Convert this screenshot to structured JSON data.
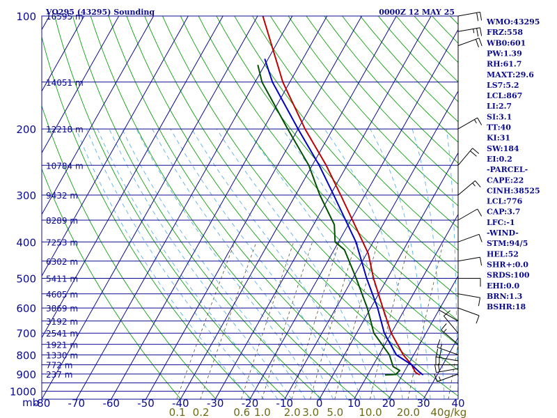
{
  "header": {
    "station_title": "VO295 (43295) Sounding",
    "valid_time": "0000Z 12 MAY 25"
  },
  "colors": {
    "background": "#ffffff",
    "isobar_isotherm": "#0b0b8f",
    "dry_adiabat": "#10a010",
    "moist_adiabat": "#59b0e8",
    "mixing_ratio": "#555533",
    "temperature": "#c00000",
    "virtual_temperature": "#0000c0",
    "dewpoint": "#005000",
    "wind_barb": "#000000",
    "label_text": "#0b0b8f",
    "mixing_label_text": "#6e6b16"
  },
  "indices": [
    "WMO:43295",
    "FRZ:558",
    "WB0:601",
    "PW:1.39",
    "RH:61.7",
    "MAXT:29.6",
    "LS7:5.2",
    "LCL:867",
    "LI:2.7",
    "SI:3.1",
    "TT:40",
    "KI:31",
    "SW:184",
    "EI:0.2",
    "-PARCEL-",
    "CAPE:22",
    "CINH:38525",
    "LCL:776",
    "CAP:3.7",
    "LFC:-1",
    "-WIND-",
    "STM:94/5",
    "HEL:52",
    "SHR+:0.0",
    "SRDS:100",
    "EHI:0.0",
    "BRN:1.3",
    "BSHR:18"
  ],
  "chart_data": {
    "type": "line",
    "title": "VO295 (43295) Sounding",
    "subtitle": "0000Z 12 MAY 25",
    "xlabel": "",
    "ylabel": "mb",
    "x_scale": "skewed temperature (deg C)",
    "y_scale": "log pressure (mb)",
    "xlim": [
      -80,
      40
    ],
    "ylim": [
      1000,
      100
    ],
    "grid": true,
    "pressure_ticks": [
      100,
      200,
      300,
      400,
      500,
      600,
      700,
      800,
      900,
      1000
    ],
    "temperature_ticks": [
      -80,
      -70,
      -60,
      -50,
      -40,
      -30,
      -20,
      -10,
      0,
      10,
      20,
      30,
      40
    ],
    "height_labels": [
      {
        "pressure": 100,
        "label": "16595 m"
      },
      {
        "pressure": 150,
        "label": "14051 m"
      },
      {
        "pressure": 200,
        "label": "12218 m"
      },
      {
        "pressure": 250,
        "label": "10784 m"
      },
      {
        "pressure": 300,
        "label": "9432 m"
      },
      {
        "pressure": 350,
        "label": "8289 m"
      },
      {
        "pressure": 400,
        "label": "7253 m"
      },
      {
        "pressure": 450,
        "label": "6302 m"
      },
      {
        "pressure": 500,
        "label": "5411 m"
      },
      {
        "pressure": 550,
        "label": "4605 m"
      },
      {
        "pressure": 600,
        "label": "3869 m"
      },
      {
        "pressure": 650,
        "label": "3192 m"
      },
      {
        "pressure": 700,
        "label": "2541 m"
      },
      {
        "pressure": 750,
        "label": "1921 m"
      },
      {
        "pressure": 800,
        "label": "1330 m"
      },
      {
        "pressure": 850,
        "label": "772 m"
      },
      {
        "pressure": 900,
        "label": "237 m"
      }
    ],
    "mixing_ratio_labels": [
      "0.1",
      "0.2",
      "0.6",
      "1.0",
      "2.0",
      "3.0",
      "5.0",
      "10.0",
      "20.0",
      "40g/kg"
    ],
    "mixing_ratio_values": [
      0.1,
      0.2,
      0.6,
      1.0,
      2.0,
      3.0,
      5.0,
      10.0,
      20.0,
      40.0
    ],
    "series": [
      {
        "key": "temperature",
        "points": [
          {
            "p": 905,
            "t": 25.0
          },
          {
            "p": 890,
            "t": 23.3
          },
          {
            "p": 850,
            "t": 21.0
          },
          {
            "p": 800,
            "t": 17.0
          },
          {
            "p": 700,
            "t": 10.0
          },
          {
            "p": 600,
            "t": 3.5
          },
          {
            "p": 500,
            "t": -4.0
          },
          {
            "p": 430,
            "t": -9.5
          },
          {
            "p": 400,
            "t": -13.0
          },
          {
            "p": 300,
            "t": -27.0
          },
          {
            "p": 250,
            "t": -36.0
          },
          {
            "p": 200,
            "t": -48.0
          },
          {
            "p": 150,
            "t": -62.0
          },
          {
            "p": 100,
            "t": -78.5
          }
        ]
      },
      {
        "key": "virtual_temperature",
        "points": [
          {
            "p": 905,
            "t": 26.0
          },
          {
            "p": 890,
            "t": 24.5
          },
          {
            "p": 850,
            "t": 21.0
          },
          {
            "p": 800,
            "t": 15.0
          },
          {
            "p": 700,
            "t": 8.0
          },
          {
            "p": 600,
            "t": 2.0
          },
          {
            "p": 500,
            "t": -6.0
          },
          {
            "p": 400,
            "t": -15.0
          },
          {
            "p": 300,
            "t": -29.0
          },
          {
            "p": 250,
            "t": -38.0
          },
          {
            "p": 200,
            "t": -50.0
          },
          {
            "p": 150,
            "t": -65.0
          },
          {
            "p": 130,
            "t": -71.0
          }
        ]
      },
      {
        "key": "dewpoint",
        "points": [
          {
            "p": 905,
            "t": 15.0
          },
          {
            "p": 902,
            "t": 18.0
          },
          {
            "p": 880,
            "t": 18.5
          },
          {
            "p": 860,
            "t": 16.0
          },
          {
            "p": 800,
            "t": 13.0
          },
          {
            "p": 700,
            "t": 5.0
          },
          {
            "p": 600,
            "t": -1.0
          },
          {
            "p": 500,
            "t": -9.0
          },
          {
            "p": 420,
            "t": -17.0
          },
          {
            "p": 400,
            "t": -21.0
          },
          {
            "p": 360,
            "t": -24.0
          },
          {
            "p": 300,
            "t": -33.0
          },
          {
            "p": 250,
            "t": -41.0
          },
          {
            "p": 200,
            "t": -53.0
          },
          {
            "p": 150,
            "t": -68.0
          },
          {
            "p": 135,
            "t": -72.0
          }
        ]
      }
    ],
    "wind_barbs": [
      {
        "p": 100,
        "dir": 80,
        "spd": 20
      },
      {
        "p": 110,
        "dir": 80,
        "spd": 25
      },
      {
        "p": 120,
        "dir": 70,
        "spd": 20
      },
      {
        "p": 200,
        "dir": 60,
        "spd": 15
      },
      {
        "p": 250,
        "dir": 40,
        "spd": 20
      },
      {
        "p": 300,
        "dir": 50,
        "spd": 15
      },
      {
        "p": 350,
        "dir": 60,
        "spd": 10
      },
      {
        "p": 400,
        "dir": 70,
        "spd": 10
      },
      {
        "p": 450,
        "dir": 80,
        "spd": 10
      },
      {
        "p": 500,
        "dir": 90,
        "spd": 10
      },
      {
        "p": 550,
        "dir": 100,
        "spd": 10
      },
      {
        "p": 600,
        "dir": 110,
        "spd": 10
      },
      {
        "p": 650,
        "dir": 300,
        "spd": 5
      },
      {
        "p": 700,
        "dir": 320,
        "spd": 10
      },
      {
        "p": 750,
        "dir": 310,
        "spd": 15
      },
      {
        "p": 800,
        "dir": 290,
        "spd": 15
      },
      {
        "p": 830,
        "dir": 280,
        "spd": 20
      },
      {
        "p": 850,
        "dir": 270,
        "spd": 20
      },
      {
        "p": 870,
        "dir": 260,
        "spd": 20
      },
      {
        "p": 900,
        "dir": 250,
        "spd": 15
      }
    ]
  }
}
